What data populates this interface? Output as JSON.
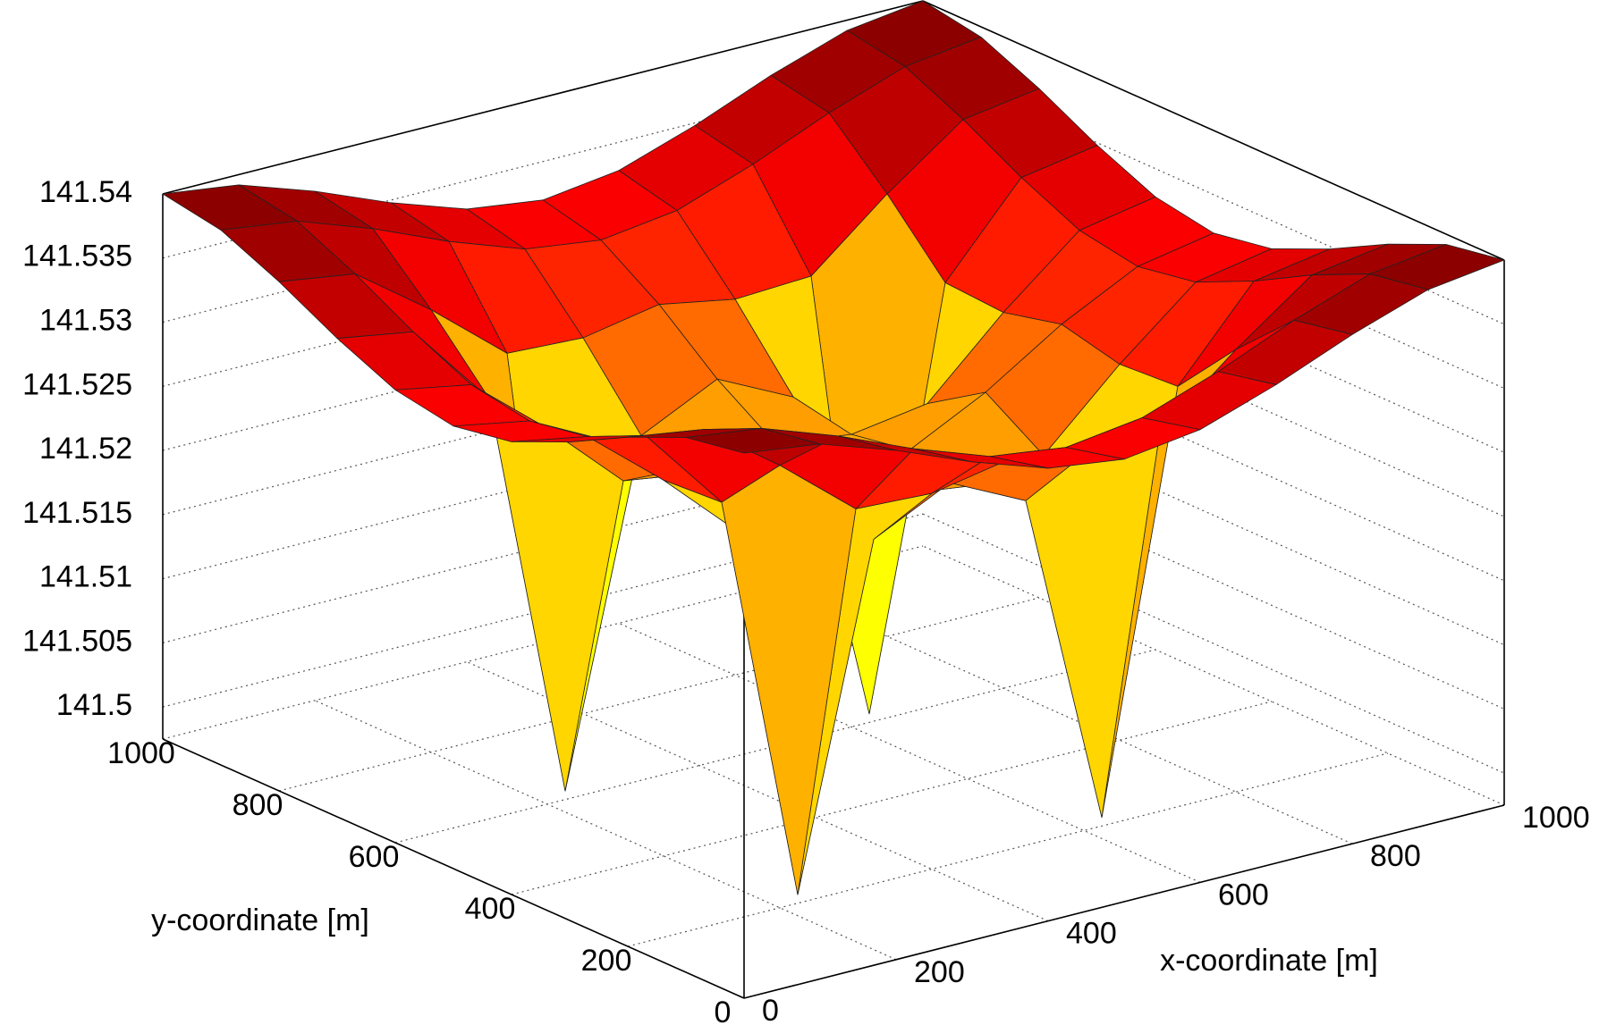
{
  "chart_data": {
    "type": "surface",
    "xlabel": "x-coordinate [m]",
    "ylabel": "y-coordinate [m]",
    "x": [
      0,
      100,
      200,
      300,
      400,
      500,
      600,
      700,
      800,
      900,
      1000
    ],
    "y": [
      0,
      100,
      200,
      300,
      400,
      500,
      600,
      700,
      800,
      900,
      1000
    ],
    "z": [
      [
        141.54,
        141.5392,
        141.5372,
        141.5348,
        141.5328,
        141.532,
        141.5328,
        141.5348,
        141.5372,
        141.5392,
        141.54
      ],
      [
        141.5392,
        141.5384,
        141.5363,
        141.5338,
        141.5317,
        141.5309,
        141.5317,
        141.5338,
        141.5363,
        141.5384,
        141.5392
      ],
      [
        141.5372,
        141.5363,
        141.532,
        141.5271,
        141.5268,
        141.5279,
        141.5268,
        141.5271,
        141.532,
        141.5363,
        141.5372
      ],
      [
        141.5348,
        141.5338,
        141.5271,
        141.495,
        141.5212,
        141.5241,
        141.5212,
        141.495,
        141.5271,
        141.5338,
        141.5348
      ],
      [
        141.5328,
        141.5317,
        141.5268,
        141.5212,
        141.5203,
        141.5211,
        141.5203,
        141.5212,
        141.5268,
        141.5317,
        141.5328
      ],
      [
        141.532,
        141.5309,
        141.5279,
        141.5241,
        141.5211,
        141.52,
        141.5211,
        141.5241,
        141.5279,
        141.5309,
        141.532
      ],
      [
        141.5328,
        141.5317,
        141.5268,
        141.5212,
        141.5203,
        141.5211,
        141.5203,
        141.5212,
        141.5268,
        141.5317,
        141.5328
      ],
      [
        141.5348,
        141.5338,
        141.5271,
        141.495,
        141.5212,
        141.5241,
        141.5212,
        141.495,
        141.5271,
        141.5338,
        141.5348
      ],
      [
        141.5372,
        141.5363,
        141.532,
        141.5271,
        141.5268,
        141.5279,
        141.5268,
        141.5271,
        141.532,
        141.5363,
        141.5372
      ],
      [
        141.5392,
        141.5384,
        141.5363,
        141.5338,
        141.5317,
        141.5309,
        141.5317,
        141.5338,
        141.5363,
        141.5384,
        141.5392
      ],
      [
        141.54,
        141.5392,
        141.5372,
        141.5348,
        141.5328,
        141.532,
        141.5328,
        141.5348,
        141.5372,
        141.5392,
        141.54
      ]
    ],
    "xlim": [
      0,
      1000
    ],
    "ylim": [
      0,
      1000
    ],
    "zlim": [
      141.4975,
      141.54
    ],
    "xticks": [
      0,
      200,
      400,
      600,
      800,
      1000
    ],
    "yticks": [
      0,
      200,
      400,
      600,
      800,
      1000
    ],
    "zticks": [
      141.5,
      141.505,
      141.51,
      141.515,
      141.52,
      141.525,
      141.53,
      141.535,
      141.54
    ],
    "grid": true,
    "colormap": [
      "#00ffff",
      "#80ff80",
      "#ffff00",
      "#ff8c00",
      "#ff0000",
      "#800000"
    ]
  }
}
